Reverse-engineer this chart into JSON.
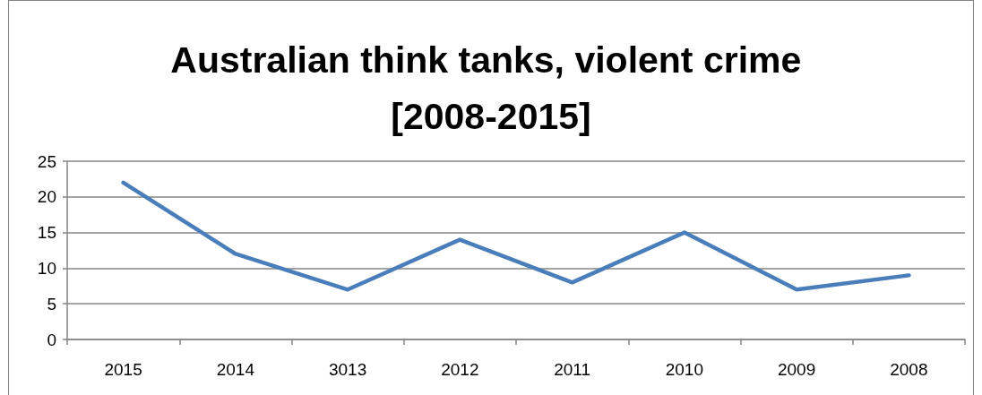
{
  "chart_data": {
    "type": "line",
    "title": "Australian think tanks, violent crime [2008-2015]",
    "categories": [
      "2015",
      "2014",
      "3013",
      "2012",
      "2011",
      "2010",
      "2009",
      "2008"
    ],
    "series": [
      {
        "values": [
          22,
          12,
          7,
          14,
          8,
          15,
          7,
          9
        ],
        "color": "#4a7ebb"
      }
    ],
    "ylim": [
      0,
      25
    ],
    "yticks": [
      0,
      5,
      10,
      15,
      20,
      25
    ],
    "grid": "y",
    "marker": "none",
    "line_style": "solid"
  }
}
